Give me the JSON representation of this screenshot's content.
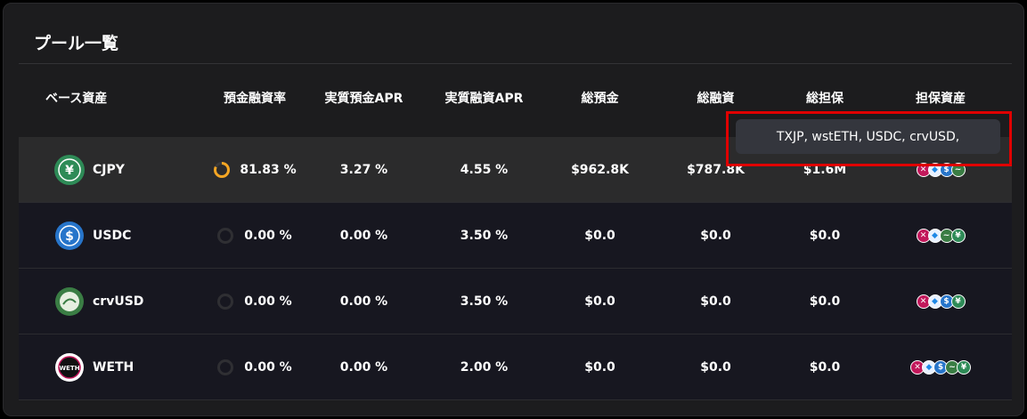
{
  "title": "プール一覧",
  "columns": [
    "ベース資産",
    "預金融資率",
    "実質預金APR",
    "実質融資APR",
    "総預金",
    "総融資",
    "総担保",
    "担保資産"
  ],
  "rows": [
    {
      "asset": "CJPY",
      "utilization": "81.83 %",
      "utilization_value": 0.8183,
      "deposit_apr": "3.27 %",
      "borrow_apr": "4.55 %",
      "total_deposit": "$962.8K",
      "total_borrow": "$787.8K",
      "total_collateral": "$1.6M",
      "collateral_icons": [
        "txjp-icon",
        "wsteth-icon",
        "usdc-icon",
        "crvusd-icon"
      ]
    },
    {
      "asset": "USDC",
      "utilization": "0.00 %",
      "utilization_value": 0,
      "deposit_apr": "0.00 %",
      "borrow_apr": "3.50 %",
      "total_deposit": "$0.0",
      "total_borrow": "$0.0",
      "total_collateral": "$0.0",
      "collateral_icons": [
        "txjp-icon",
        "wsteth-icon",
        "crvusd-icon",
        "cjpy-icon"
      ]
    },
    {
      "asset": "crvUSD",
      "utilization": "0.00 %",
      "utilization_value": 0,
      "deposit_apr": "0.00 %",
      "borrow_apr": "3.50 %",
      "total_deposit": "$0.0",
      "total_borrow": "$0.0",
      "total_collateral": "$0.0",
      "collateral_icons": [
        "txjp-icon",
        "wsteth-icon",
        "usdc-icon",
        "cjpy-icon"
      ]
    },
    {
      "asset": "WETH",
      "utilization": "0.00 %",
      "utilization_value": 0,
      "deposit_apr": "0.00 %",
      "borrow_apr": "2.00 %",
      "total_deposit": "$0.0",
      "total_borrow": "$0.0",
      "total_collateral": "$0.0",
      "collateral_icons": [
        "txjp-icon",
        "wsteth-icon",
        "usdc-icon",
        "crvusd-icon",
        "cjpy-icon"
      ]
    }
  ],
  "tooltip": "TXJP, wstETH, USDC, crvUSD,",
  "colors": {
    "accent_ring": "#f5a623",
    "highlight": "#e00000",
    "cjpy": "#2e8b57",
    "usdc": "#2775ca",
    "crvusd": "#3a7d44",
    "weth": "#1a1a1a"
  }
}
